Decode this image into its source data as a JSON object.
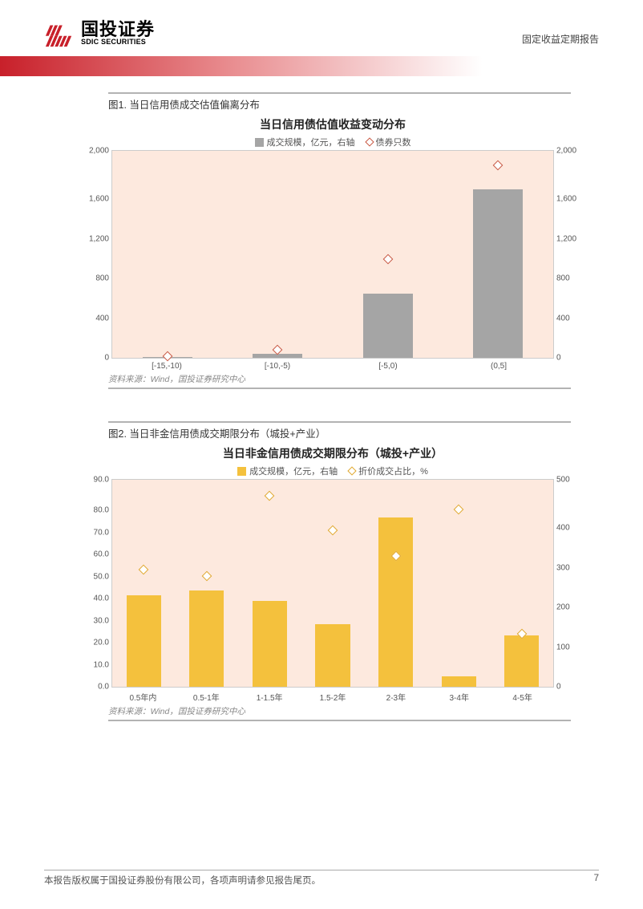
{
  "header": {
    "logo_cn": "国投证券",
    "logo_en": "SDIC SECURITIES",
    "doc_class": "固定收益定期报告",
    "logo_color": "#c8202a"
  },
  "chart1": {
    "fig_label": "图1. 当日信用债成交估值偏离分布",
    "title": "当日信用债估值收益变动分布",
    "legend_bar": "成交规模，亿元，右轴",
    "legend_marker": "债券只数",
    "type": "bar+scatter-dual-axis",
    "categories": [
      "[-15,-10)",
      "[-10,-5)",
      "[-5,0)",
      "(0,5]"
    ],
    "left_axis": {
      "min": 0,
      "max": 2000,
      "step": 400,
      "label_fontsize": 10
    },
    "right_axis": {
      "min": 0,
      "max": 2000,
      "step": 400,
      "label_fontsize": 10
    },
    "bars": {
      "values": [
        10,
        40,
        620,
        1630
      ],
      "color": "#a5a5a5",
      "width_frac": 0.45
    },
    "markers": {
      "values": [
        18,
        80,
        950,
        1860
      ],
      "color": "#c85640",
      "shape": "diamond-outline"
    },
    "plot_bg": "#fde9de",
    "source": "资料来源：Wind，国投证券研究中心"
  },
  "chart2": {
    "fig_label": "图2. 当日非金信用债成交期限分布（城投+产业）",
    "title": "当日非金信用债成交期限分布（城投+产业）",
    "legend_bar": "成交规模，亿元，右轴",
    "legend_marker": "折价成交占比，%",
    "type": "bar+scatter-dual-axis",
    "categories": [
      "0.5年内",
      "0.5-1年",
      "1-1.5年",
      "1.5-2年",
      "2-3年",
      "3-4年",
      "4-5年"
    ],
    "left_axis": {
      "min": 0,
      "max": 90,
      "step": 10,
      "label_fontsize": 10,
      "format": ".1f"
    },
    "right_axis": {
      "min": 0,
      "max": 500,
      "step": 100,
      "label_fontsize": 10
    },
    "bars_right_axis": {
      "values": [
        220,
        232,
        208,
        152,
        408,
        25,
        125
      ],
      "color": "#f4c13d",
      "width_frac": 0.55
    },
    "markers_left_axis": {
      "values": [
        51,
        48,
        83,
        68,
        57,
        77,
        23
      ],
      "color": "#e0a72e",
      "shape": "diamond-outline"
    },
    "plot_bg": "#fde9de",
    "source": "资料来源：Wind，国投证券研究中心"
  },
  "footer": {
    "copyright": "本报告版权属于国投证券股份有限公司，各项声明请参见报告尾页。",
    "page_no": "7"
  }
}
